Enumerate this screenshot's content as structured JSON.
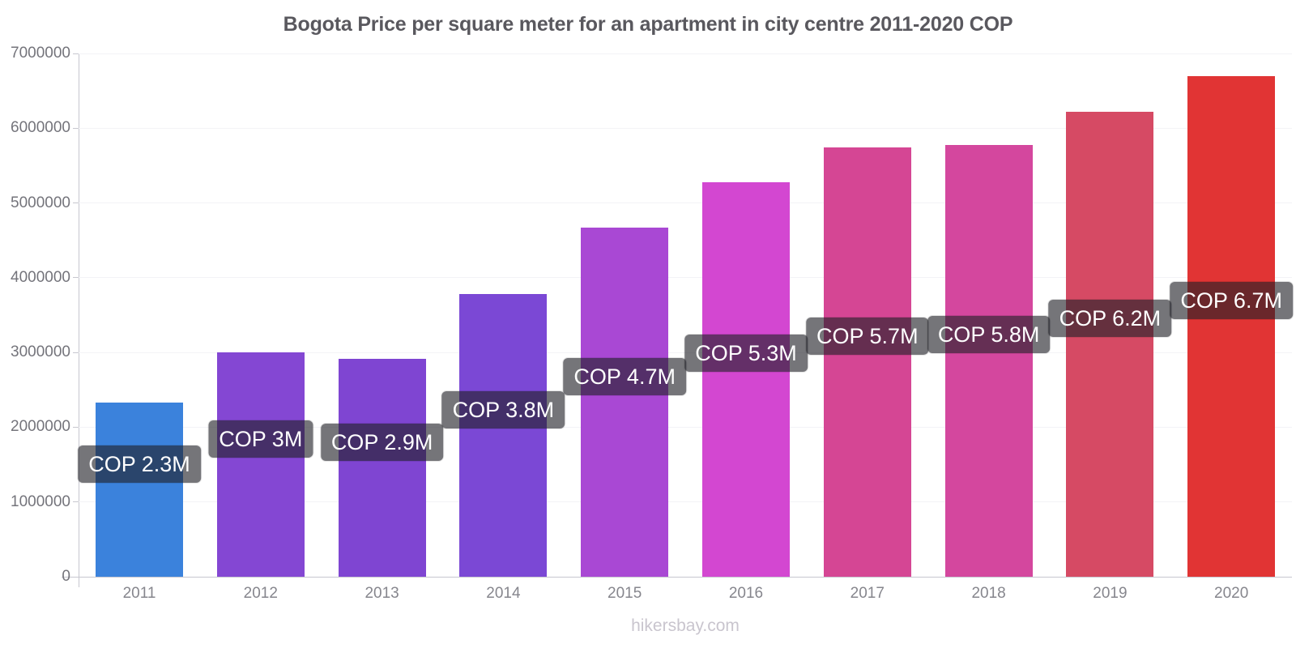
{
  "chart_data": {
    "type": "bar",
    "title": "Bogota Price per square meter for an apartment in city centre 2011-2020 COP",
    "xlabel": "",
    "ylabel": "",
    "categories": [
      "2011",
      "2012",
      "2013",
      "2014",
      "2015",
      "2016",
      "2017",
      "2018",
      "2019",
      "2020"
    ],
    "values": [
      2330000,
      3000000,
      2910000,
      3780000,
      4670000,
      5280000,
      5740000,
      5780000,
      6220000,
      6700000
    ],
    "value_labels": [
      "COP 2.3M",
      "COP 3M",
      "COP 2.9M",
      "COP 3.8M",
      "COP 4.7M",
      "COP 5.3M",
      "COP 5.7M",
      "COP 5.8M",
      "COP 6.2M",
      "COP 6.7M"
    ],
    "bar_colors": [
      "#3b82dc",
      "#8447d3",
      "#7f45d2",
      "#7b48d5",
      "#a948d4",
      "#d347d1",
      "#d54694",
      "#d4479e",
      "#d64a64",
      "#e13434"
    ],
    "ylim": [
      0,
      7000000
    ],
    "y_ticks": [
      0,
      1000000,
      2000000,
      3000000,
      4000000,
      5000000,
      6000000,
      7000000
    ],
    "legend": "none",
    "grid": "faint-horizontal",
    "currency": "COP",
    "label_style": {
      "background": "rgba(33,33,38,0.62)",
      "text_color": "#ffffff"
    }
  },
  "footer": {
    "watermark": "hikersbay.com"
  }
}
